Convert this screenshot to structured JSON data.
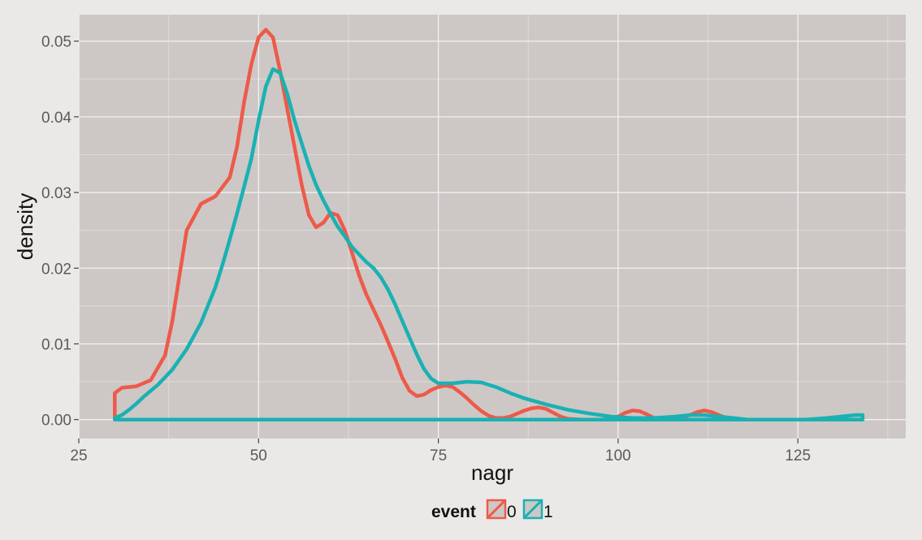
{
  "chart_data": {
    "type": "line",
    "xlabel": "nagr",
    "ylabel": "density",
    "xlim": [
      25,
      140
    ],
    "ylim": [
      -0.0025,
      0.0535
    ],
    "x_ticks": [
      25,
      50,
      75,
      100,
      125
    ],
    "y_ticks": [
      0.0,
      0.01,
      0.02,
      0.03,
      0.04,
      0.05
    ],
    "x_tick_labels": [
      "25",
      "50",
      "75",
      "100",
      "125"
    ],
    "y_tick_labels": [
      "0.00",
      "0.01",
      "0.02",
      "0.03",
      "0.04",
      "0.05"
    ],
    "grid": true,
    "legend": {
      "title": "event",
      "position": "bottom"
    },
    "series": [
      {
        "name": "0",
        "color": "#ee5a4a",
        "points": [
          [
            30,
            0.0035
          ],
          [
            31,
            0.0042
          ],
          [
            33,
            0.0044
          ],
          [
            35,
            0.0052
          ],
          [
            37,
            0.0085
          ],
          [
            38,
            0.013
          ],
          [
            39,
            0.019
          ],
          [
            40,
            0.025
          ],
          [
            42,
            0.0285
          ],
          [
            44,
            0.0295
          ],
          [
            46,
            0.032
          ],
          [
            47,
            0.036
          ],
          [
            48,
            0.042
          ],
          [
            49,
            0.047
          ],
          [
            50,
            0.0505
          ],
          [
            51,
            0.0515
          ],
          [
            52,
            0.0505
          ],
          [
            53,
            0.046
          ],
          [
            54,
            0.041
          ],
          [
            55,
            0.036
          ],
          [
            56,
            0.031
          ],
          [
            57,
            0.027
          ],
          [
            58,
            0.0254
          ],
          [
            59,
            0.026
          ],
          [
            60,
            0.0273
          ],
          [
            61,
            0.027
          ],
          [
            62,
            0.025
          ],
          [
            63,
            0.022
          ],
          [
            64,
            0.019
          ],
          [
            65,
            0.0165
          ],
          [
            66,
            0.0145
          ],
          [
            67,
            0.0125
          ],
          [
            68,
            0.0103
          ],
          [
            69,
            0.008
          ],
          [
            70,
            0.0055
          ],
          [
            71,
            0.0038
          ],
          [
            72,
            0.0031
          ],
          [
            73,
            0.0033
          ],
          [
            74,
            0.0039
          ],
          [
            75,
            0.0043
          ],
          [
            76,
            0.0045
          ],
          [
            77,
            0.0043
          ],
          [
            78,
            0.0036
          ],
          [
            79,
            0.0028
          ],
          [
            80,
            0.0019
          ],
          [
            81,
            0.0011
          ],
          [
            82,
            0.0005
          ],
          [
            83,
            0.0002
          ],
          [
            84,
            0.0002
          ],
          [
            85,
            0.0004
          ],
          [
            86,
            0.0008
          ],
          [
            87,
            0.0012
          ],
          [
            88,
            0.0015
          ],
          [
            89,
            0.0016
          ],
          [
            90,
            0.0014
          ],
          [
            91,
            0.0009
          ],
          [
            92,
            0.0004
          ],
          [
            93,
            0.0001
          ],
          [
            95,
            0.0
          ],
          [
            98,
            0.0
          ],
          [
            100,
            0.0004
          ],
          [
            101,
            0.0009
          ],
          [
            102,
            0.0012
          ],
          [
            103,
            0.0011
          ],
          [
            104,
            0.0007
          ],
          [
            105,
            0.0002
          ],
          [
            106,
            0.0
          ],
          [
            108,
            0.0001
          ],
          [
            110,
            0.0006
          ],
          [
            111,
            0.001
          ],
          [
            112,
            0.0012
          ],
          [
            113,
            0.001
          ],
          [
            114,
            0.0006
          ],
          [
            115,
            0.0002
          ],
          [
            116,
            0.0
          ],
          [
            120,
            0.0
          ],
          [
            125,
            0.0
          ],
          [
            130,
            0.0
          ],
          [
            134,
            0.0
          ],
          [
            134,
            0.0
          ],
          [
            30,
            0.0
          ],
          [
            30,
            0.0035
          ]
        ]
      },
      {
        "name": "1",
        "color": "#1ab1b3",
        "points": [
          [
            30,
            0.0002
          ],
          [
            31,
            0.0006
          ],
          [
            32,
            0.0013
          ],
          [
            33,
            0.0021
          ],
          [
            34,
            0.003
          ],
          [
            36,
            0.0046
          ],
          [
            38,
            0.0066
          ],
          [
            40,
            0.0093
          ],
          [
            42,
            0.0128
          ],
          [
            44,
            0.0175
          ],
          [
            45,
            0.0205
          ],
          [
            46,
            0.0238
          ],
          [
            47,
            0.0272
          ],
          [
            48,
            0.0308
          ],
          [
            49,
            0.0345
          ],
          [
            50,
            0.0395
          ],
          [
            51,
            0.044
          ],
          [
            52,
            0.0463
          ],
          [
            53,
            0.0458
          ],
          [
            54,
            0.043
          ],
          [
            55,
            0.0395
          ],
          [
            56,
            0.0365
          ],
          [
            57,
            0.0335
          ],
          [
            58,
            0.031
          ],
          [
            59,
            0.029
          ],
          [
            60,
            0.0272
          ],
          [
            61,
            0.0255
          ],
          [
            62,
            0.0242
          ],
          [
            63,
            0.0228
          ],
          [
            64,
            0.0218
          ],
          [
            65,
            0.0208
          ],
          [
            66,
            0.02
          ],
          [
            67,
            0.0188
          ],
          [
            68,
            0.0172
          ],
          [
            69,
            0.0152
          ],
          [
            70,
            0.013
          ],
          [
            71,
            0.0108
          ],
          [
            72,
            0.0086
          ],
          [
            73,
            0.0067
          ],
          [
            74,
            0.0054
          ],
          [
            75,
            0.0048
          ],
          [
            77,
            0.0048
          ],
          [
            79,
            0.005
          ],
          [
            81,
            0.0049
          ],
          [
            83,
            0.0043
          ],
          [
            85,
            0.0035
          ],
          [
            87,
            0.0028
          ],
          [
            90,
            0.002
          ],
          [
            93,
            0.0013
          ],
          [
            96,
            0.0008
          ],
          [
            99,
            0.0004
          ],
          [
            102,
            0.0002
          ],
          [
            105,
            0.0002
          ],
          [
            108,
            0.0004
          ],
          [
            110,
            0.0006
          ],
          [
            112,
            0.0006
          ],
          [
            114,
            0.0004
          ],
          [
            116,
            0.0002
          ],
          [
            118,
            0.0
          ],
          [
            122,
            0.0
          ],
          [
            126,
            0.0
          ],
          [
            129,
            0.0002
          ],
          [
            131,
            0.0004
          ],
          [
            133,
            0.0006
          ],
          [
            134,
            0.0006
          ],
          [
            134,
            0.0
          ],
          [
            30,
            0.0
          ],
          [
            30,
            0.0002
          ]
        ]
      }
    ]
  }
}
